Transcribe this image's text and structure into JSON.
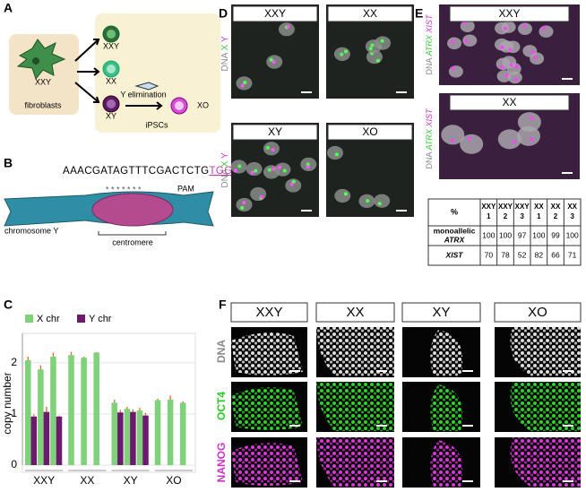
{
  "panel_labels": [
    "A",
    "B",
    "C",
    "D",
    "E",
    "F"
  ],
  "panel_a": {
    "fibroblast_karyotype": "XXY",
    "fibroblasts": "fibroblasts",
    "cells": [
      "XXY",
      "XX",
      "XY",
      "XO"
    ],
    "ipscs": "iPSCs",
    "y_elimination": "Y elimination"
  },
  "panel_b": {
    "guide": "AAACGATAGTTTCGACTCTG",
    "pam_sequence": "TGG",
    "pam": "PAM",
    "stars": "* * *   * * * *",
    "chromosome": "chromosome Y",
    "centromere": "centromere"
  },
  "chart_data": {
    "type": "bar",
    "y_label": "copy number",
    "categories": [
      "XXY",
      "XX",
      "XY",
      "XO"
    ],
    "series": [
      {
        "name": "X chr",
        "color": "#7fd17a",
        "values": [
          [
            2.05,
            1.87,
            2.12
          ],
          [
            2.15,
            2.1,
            2.2
          ],
          [
            1.22,
            1.1,
            1.07
          ],
          [
            1.27,
            1.28,
            1.22
          ]
        ],
        "errors": [
          [
            0.07,
            0.08,
            0.08
          ],
          [
            0.06,
            0.02,
            0.01
          ],
          [
            0.06,
            0.04,
            0.05
          ],
          [
            0.03,
            0.08,
            0.03
          ]
        ]
      },
      {
        "name": "Y chr",
        "color": "#6b1a6e",
        "values": [
          [
            0.95,
            1.04,
            0.95
          ],
          [
            null,
            null,
            null
          ],
          [
            1.03,
            1.04,
            0.97
          ],
          [
            null,
            null,
            null
          ]
        ],
        "errors": [
          [
            0.04,
            0.1,
            0.02
          ],
          [
            null,
            null,
            null
          ],
          [
            0.05,
            0.05,
            0.05
          ],
          [
            null,
            null,
            null
          ]
        ]
      }
    ],
    "ylim": [
      0,
      2.4
    ],
    "yticks": [
      0,
      1,
      2
    ],
    "grid": true,
    "error_color": "#e0672a"
  },
  "panel_d": {
    "images": [
      "XXY",
      "XX",
      "XY",
      "XO"
    ],
    "stain": [
      "DNA",
      "X",
      "Y"
    ]
  },
  "panel_e": {
    "images": [
      "XXY",
      "XX"
    ],
    "stain": [
      "DNA",
      "ATRX",
      "XIST"
    ],
    "table": {
      "corner": "%",
      "columns": [
        [
          "XXY",
          "1"
        ],
        [
          "XXY",
          "2"
        ],
        [
          "XXY",
          "3"
        ],
        [
          "XX",
          "1"
        ],
        [
          "XX",
          "2"
        ],
        [
          "XX",
          "3"
        ]
      ],
      "rows": [
        {
          "label": [
            "monoallelic",
            "ATRX"
          ],
          "values": [
            100,
            100,
            97,
            100,
            99,
            100
          ]
        },
        {
          "label": [
            "XIST"
          ],
          "values": [
            70,
            78,
            52,
            82,
            66,
            71
          ]
        }
      ]
    }
  },
  "panel_f": {
    "columns": [
      "XXY",
      "XX",
      "XY",
      "XO"
    ],
    "rows": [
      "DNA",
      "OCT4",
      "NANOG"
    ]
  }
}
